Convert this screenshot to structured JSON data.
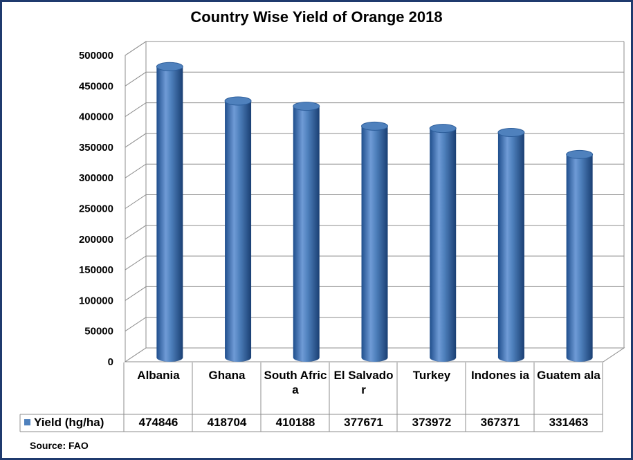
{
  "chart_data": {
    "type": "bar",
    "title": "Country Wise Yield of Orange 2018",
    "categories": [
      "Albania",
      "Ghana",
      "South Africa",
      "El Salvador",
      "Turkey",
      "Indonesia",
      "Guatemala"
    ],
    "category_labels": [
      "Albania",
      "Ghana",
      "South Africa",
      "El Salvado r",
      "Turkey",
      "Indones ia",
      "Guatem ala"
    ],
    "series": [
      {
        "name": "Yield (hg/ha)",
        "values": [
          474846,
          418704,
          410188,
          377671,
          373972,
          367371,
          331463
        ]
      }
    ],
    "value_labels": [
      "474846",
      "418704",
      "410188",
      "377671",
      "373972",
      "367371",
      "331463"
    ],
    "yticks": [
      "0",
      "50000",
      "100000",
      "150000",
      "200000",
      "250000",
      "300000",
      "350000",
      "400000",
      "450000",
      "500000"
    ],
    "ylim": [
      0,
      500000
    ],
    "grid": true,
    "bar_shape": "3d-cylinder",
    "legend_placement": "data-table",
    "source": "Source: FAO",
    "colors": {
      "bar": "#4f81bd",
      "bar_dark": "#1f4e8c",
      "bar_light": "#8fb3e0",
      "grid": "#8c8c8c",
      "border": "#1f3a6e"
    }
  }
}
